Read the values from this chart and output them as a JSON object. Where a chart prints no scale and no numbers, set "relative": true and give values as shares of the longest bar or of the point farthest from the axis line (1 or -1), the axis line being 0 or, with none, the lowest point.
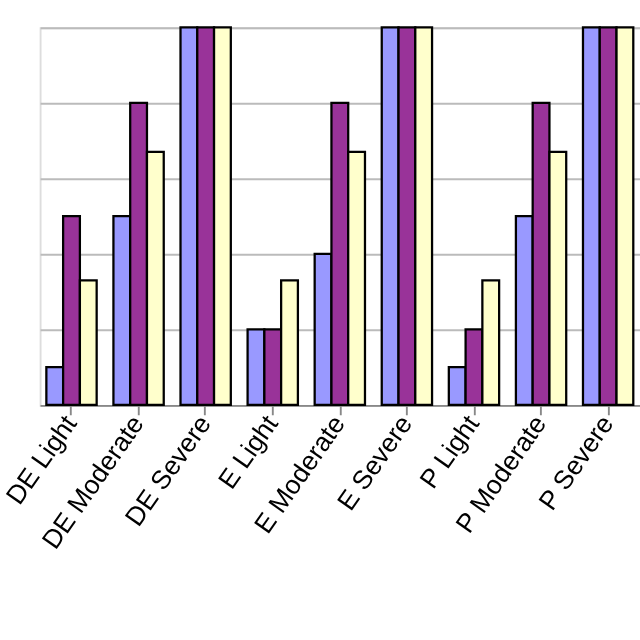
{
  "chart_data": {
    "type": "bar",
    "relative": true,
    "grid": "y",
    "categories": [
      "DE Light",
      "DE Moderate",
      "DE Severe",
      "E Light",
      "E Moderate",
      "E Severe",
      "P Light",
      "P Moderate",
      "P Severe"
    ],
    "series": [
      {
        "color": "#9999ff",
        "values": [
          0.1,
          0.5,
          1,
          0.2,
          0.4,
          1,
          0.1,
          0.5,
          1
        ]
      },
      {
        "color": "#993399",
        "values": [
          0.5,
          0.8,
          1,
          0.2,
          0.8,
          1,
          0.2,
          0.8,
          1
        ]
      },
      {
        "color": "#ffffcc",
        "values": [
          0.33,
          0.67,
          1,
          0.33,
          0.67,
          1,
          0.33,
          0.67,
          1
        ]
      }
    ]
  }
}
